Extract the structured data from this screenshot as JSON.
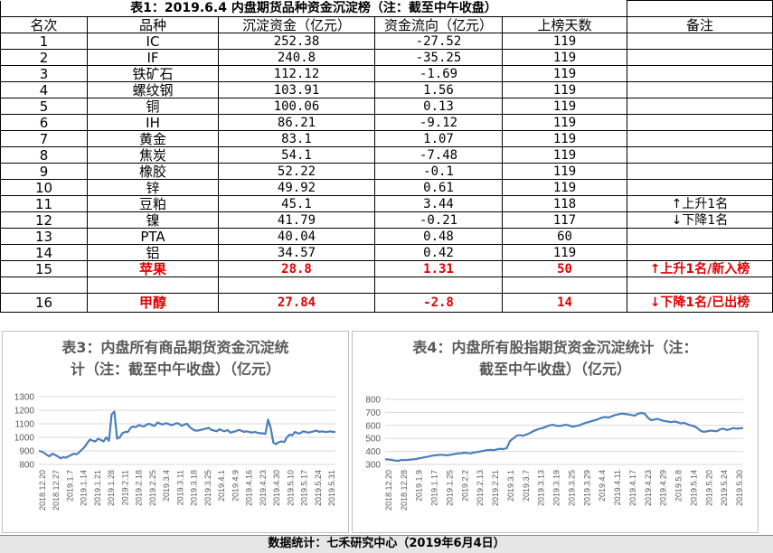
{
  "table": {
    "title": "表1：2019.6.4 内盘期货品种资金沉淀榜（注：截至中午收盘）",
    "headers": [
      "名次",
      "品种",
      "沉淀资金（亿元）",
      "资金流向（亿元）",
      "上榜天数",
      "备注"
    ],
    "rows": [
      {
        "rank": "1",
        "name": "IC",
        "fund": "252.38",
        "flow": "-27.52",
        "days": "119",
        "note": ""
      },
      {
        "rank": "2",
        "name": "IF",
        "fund": "240.8",
        "flow": "-35.25",
        "days": "119",
        "note": ""
      },
      {
        "rank": "3",
        "name": "铁矿石",
        "fund": "112.12",
        "flow": "-1.69",
        "days": "119",
        "note": ""
      },
      {
        "rank": "4",
        "name": "螺纹钢",
        "fund": "103.91",
        "flow": "1.56",
        "days": "119",
        "note": ""
      },
      {
        "rank": "5",
        "name": "铜",
        "fund": "100.06",
        "flow": "0.13",
        "days": "119",
        "note": ""
      },
      {
        "rank": "6",
        "name": "IH",
        "fund": "86.21",
        "flow": "-9.12",
        "days": "119",
        "note": ""
      },
      {
        "rank": "7",
        "name": "黄金",
        "fund": "83.1",
        "flow": "1.07",
        "days": "119",
        "note": ""
      },
      {
        "rank": "8",
        "name": "焦炭",
        "fund": "54.1",
        "flow": "-7.48",
        "days": "119",
        "note": ""
      },
      {
        "rank": "9",
        "name": "橡胶",
        "fund": "52.22",
        "flow": "-0.1",
        "days": "119",
        "note": ""
      },
      {
        "rank": "10",
        "name": "锌",
        "fund": "49.92",
        "flow": "0.61",
        "days": "119",
        "note": ""
      },
      {
        "rank": "11",
        "name": "豆粕",
        "fund": "45.1",
        "flow": "3.44",
        "days": "118",
        "note": "↑上升1名"
      },
      {
        "rank": "12",
        "name": "镍",
        "fund": "41.79",
        "flow": "-0.21",
        "days": "117",
        "note": "↓下降1名"
      },
      {
        "rank": "13",
        "name": "PTA",
        "fund": "40.04",
        "flow": "0.48",
        "days": "60",
        "note": ""
      },
      {
        "rank": "14",
        "name": "铝",
        "fund": "34.57",
        "flow": "0.42",
        "days": "119",
        "note": ""
      },
      {
        "rank": "15",
        "name": "苹果",
        "fund": "28.8",
        "flow": "1.31",
        "days": "50",
        "note": "↑上升1名/新入榜"
      },
      {
        "rank": "16",
        "name": "甲醇",
        "fund": "27.84",
        "flow": "-2.8",
        "days": "14",
        "note": "↓下降1名/已出榜"
      }
    ]
  },
  "colors": {
    "highlight_red": "#e00000",
    "line_blue": "#4a7ebb",
    "grid": "#d9d9d9"
  },
  "chart_data": [
    {
      "type": "line",
      "title": "表3：内盘所有商品期货资金沉淀统计（注：截至中午收盘）（亿元）",
      "title_line1": "表3：内盘所有商品期货资金沉淀统",
      "title_line2": "计（注：截至中午收盘）（亿元）",
      "ylim": [
        800,
        1300
      ],
      "yticks": [
        "1300",
        "1200",
        "1100",
        "1000",
        "900",
        "800"
      ],
      "xticks": [
        "2018.12.20",
        "2018.12.27",
        "2019.1.7",
        "2019.1.14",
        "2019.1.21",
        "2019.1.28",
        "2019.2.11",
        "2019.2.18",
        "2019.2.25",
        "2019.3.4",
        "2019.3.11",
        "2019.3.18",
        "2019.3.25",
        "2019.4.1",
        "2019.4.9",
        "2019.4.16",
        "2019.4.23",
        "2019.4.30",
        "2019.5.10",
        "2019.5.17",
        "2019.5.24",
        "2019.5.31"
      ],
      "values": [
        900,
        895,
        885,
        870,
        860,
        880,
        870,
        860,
        845,
        855,
        850,
        860,
        870,
        880,
        875,
        890,
        910,
        930,
        960,
        985,
        975,
        970,
        990,
        980,
        970,
        1000,
        975,
        1170,
        1190,
        990,
        1000,
        1030,
        1040,
        1040,
        1070,
        1080,
        1075,
        1090,
        1085,
        1080,
        1095,
        1100,
        1090,
        1085,
        1110,
        1100,
        1095,
        1105,
        1100,
        1090,
        1095,
        1105,
        1100,
        1085,
        1095,
        1100,
        1075,
        1060,
        1050,
        1050,
        1055,
        1060,
        1065,
        1070,
        1055,
        1050,
        1045,
        1060,
        1050,
        1045,
        1055,
        1035,
        1040,
        1045,
        1055,
        1050,
        1040,
        1045,
        1040,
        1035,
        1040,
        1035,
        1030,
        1030,
        1025,
        1130,
        1070,
        960,
        950,
        965,
        970,
        965,
        1000,
        1020,
        1015,
        1040,
        1030,
        1030,
        1045,
        1040,
        1035,
        1040,
        1045,
        1050,
        1040,
        1045,
        1040,
        1040,
        1045,
        1040,
        1040
      ]
    },
    {
      "type": "line",
      "title": "表4：内盘所有股指期货资金沉淀统计（注：截至中午收盘）（亿元）",
      "title_line1": "表4：内盘所有股指期货资金沉淀统计（注：",
      "title_line2": "截至中午收盘）（亿元）",
      "ylim": [
        300,
        800
      ],
      "yticks": [
        "800",
        "700",
        "600",
        "500",
        "400",
        "300"
      ],
      "xticks": [
        "2018.12.20",
        "2018.12.28",
        "2019.1.9",
        "2019.1.17",
        "2019.1.25",
        "2019.2.2",
        "2019.2.13",
        "2019.2.21",
        "2019.3.1",
        "2019.3.7",
        "2019.3.13",
        "2019.3.19",
        "2019.3.25",
        "2019.3.29",
        "2019.4.4",
        "2019.4.11",
        "2019.4.17",
        "2019.4.23",
        "2019.4.29",
        "2019.5.8",
        "2019.5.14",
        "2019.5.20",
        "2019.5.24",
        "2019.5.30"
      ],
      "values": [
        340,
        338,
        335,
        330,
        328,
        335,
        333,
        335,
        338,
        340,
        345,
        350,
        355,
        360,
        365,
        370,
        372,
        375,
        372,
        370,
        375,
        380,
        385,
        385,
        390,
        388,
        385,
        392,
        395,
        400,
        405,
        410,
        412,
        410,
        415,
        420,
        418,
        425,
        480,
        500,
        520,
        525,
        520,
        530,
        540,
        555,
        565,
        575,
        580,
        590,
        600,
        605,
        598,
        595,
        600,
        605,
        600,
        590,
        595,
        600,
        610,
        620,
        625,
        635,
        640,
        650,
        660,
        665,
        660,
        670,
        680,
        685,
        690,
        688,
        685,
        680,
        675,
        690,
        695,
        690,
        660,
        640,
        645,
        650,
        640,
        635,
        630,
        625,
        630,
        625,
        615,
        620,
        610,
        600,
        595,
        580,
        560,
        550,
        555,
        560,
        558,
        555,
        570,
        575,
        565,
        570,
        580,
        575,
        578,
        580
      ]
    }
  ],
  "footer": "数据统计：七禾研究中心（2019年6月4日）"
}
